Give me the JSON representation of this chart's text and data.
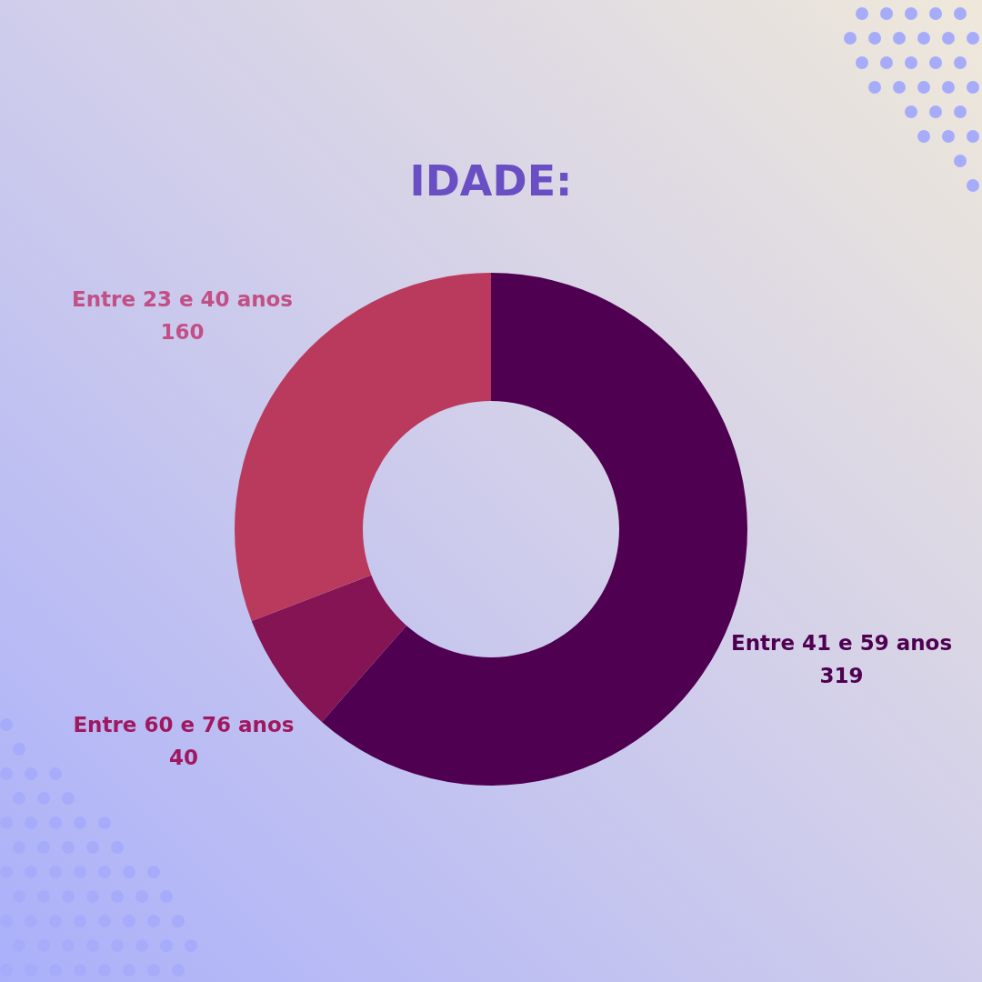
{
  "chart_data": {
    "type": "donut",
    "title": "IDADE:",
    "categories": [
      "Entre 41 e 59 anos",
      "Entre 60 e 76 anos",
      "Entre 23 e 40 anos"
    ],
    "values": [
      319,
      40,
      160
    ],
    "colors": [
      "#4f0050",
      "#851455",
      "#b93a5d"
    ],
    "data_labels": true
  }
}
